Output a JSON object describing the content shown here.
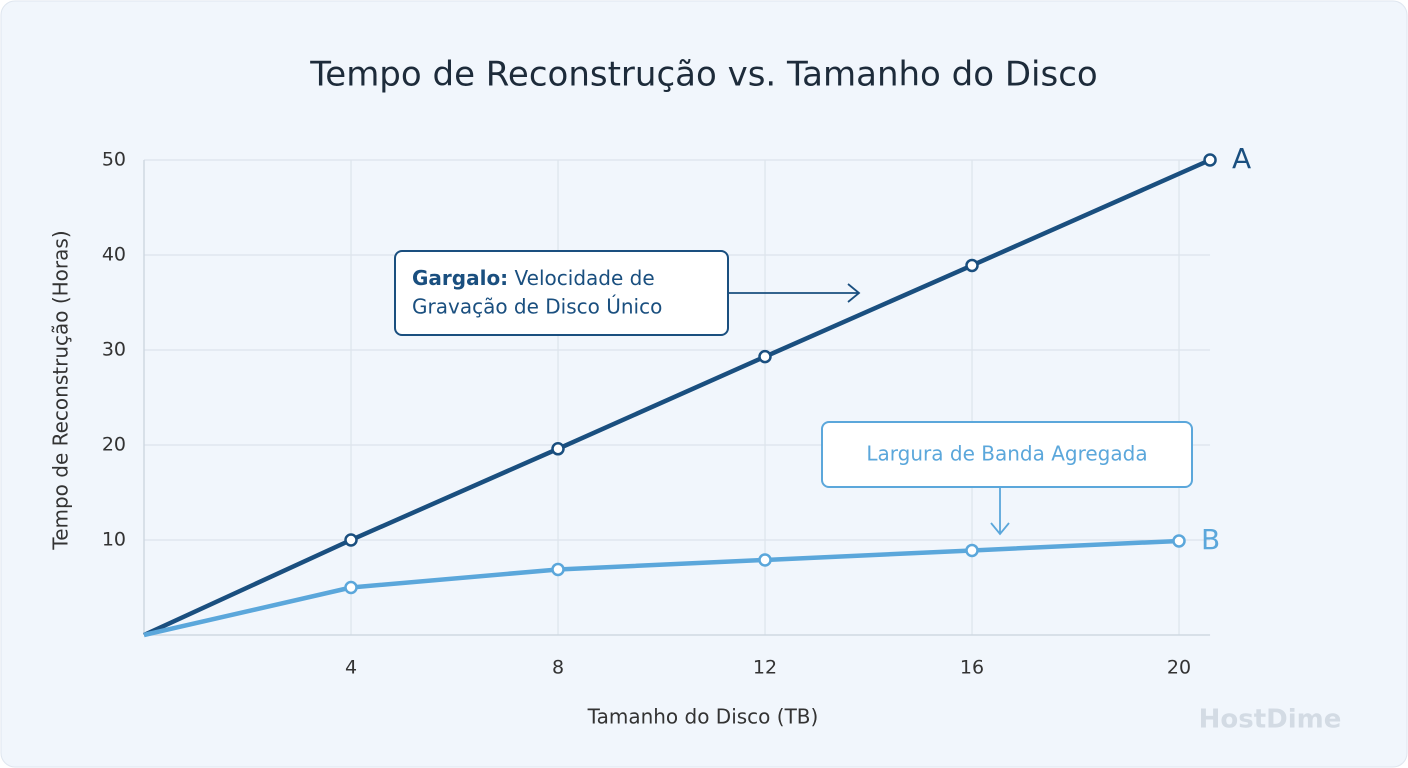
{
  "chart_data": {
    "type": "line",
    "title": "Tempo de Reconstrução vs. Tamanho do Disco",
    "x_label": "Tamanho do Disco (TB)",
    "y_label": "Tempo de Reconstrução (Horas)",
    "xlim": [
      0,
      20.6
    ],
    "xticks": [
      4,
      8,
      12,
      16,
      20
    ],
    "ylim": [
      0,
      50
    ],
    "yticks": [
      10,
      20,
      30,
      40,
      50
    ],
    "grid": true,
    "series": [
      {
        "name": "A",
        "color": "#1a4f7f",
        "x": [
          0,
          4,
          8,
          12,
          16,
          20.6
        ],
        "values": [
          0,
          10,
          19.6,
          29.3,
          38.9,
          50
        ]
      },
      {
        "name": "B",
        "color": "#5ba7db",
        "x": [
          0,
          4,
          8,
          12,
          16,
          20
        ],
        "values": [
          0,
          5,
          6.9,
          7.9,
          8.9,
          9.9
        ]
      }
    ],
    "annotations": [
      {
        "label": "Gargalo:",
        "text": [
          "Velocidade de",
          "Gravação de Disco Único"
        ],
        "color": "#1a4f7f"
      },
      {
        "text": [
          "Largura de Banda Agregada"
        ],
        "color": "#5ba7db"
      }
    ],
    "watermark": "HostDime"
  }
}
